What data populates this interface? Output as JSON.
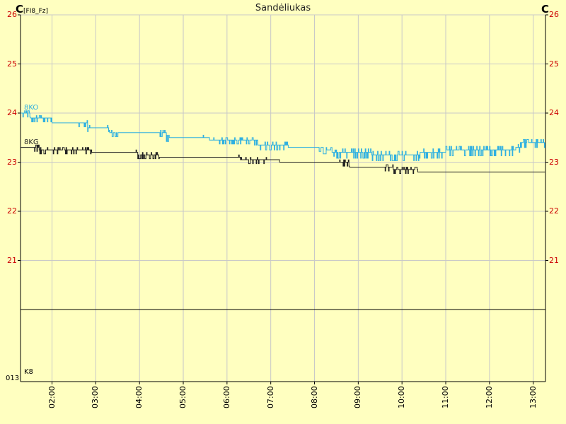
{
  "title": "Sandėliukas",
  "unit_left": "C",
  "unit_left_tag": "[FI8_Fz]",
  "unit_right": "C",
  "lower_panel": {
    "left_label": "013",
    "series_label": "K8"
  },
  "colors": {
    "background": "#ffffc0",
    "grid": "#c8c8c8",
    "axis": "#000000",
    "tick_text": "#cc0000"
  },
  "chart_data": {
    "type": "line",
    "title": "Sandėliukas",
    "ylim": [
      20,
      26
    ],
    "yticks": [
      "21",
      "22",
      "23",
      "24",
      "25",
      "26"
    ],
    "x_start": 1.28,
    "x_end": 13.28,
    "xticks": [
      {
        "h": 2,
        "label": "02:00"
      },
      {
        "h": 3,
        "label": "03:00"
      },
      {
        "h": 4,
        "label": "04:00"
      },
      {
        "h": 5,
        "label": "05:00"
      },
      {
        "h": 6,
        "label": "06:00"
      },
      {
        "h": 7,
        "label": "07:00"
      },
      {
        "h": 8,
        "label": "08:00"
      },
      {
        "h": 9,
        "label": "09:00"
      },
      {
        "h": 10,
        "label": "10:00"
      },
      {
        "h": 11,
        "label": "11:00"
      },
      {
        "h": 12,
        "label": "12:00"
      },
      {
        "h": 13,
        "label": "13:00"
      }
    ],
    "grid": true,
    "series": [
      {
        "name": "8KO",
        "color": "#30b0e0",
        "steps": [
          [
            1.28,
            24.0
          ],
          [
            1.5,
            23.9
          ],
          [
            2.0,
            23.8
          ],
          [
            2.6,
            23.8
          ],
          [
            2.8,
            23.7
          ],
          [
            3.2,
            23.7
          ],
          [
            3.3,
            23.6
          ],
          [
            4.45,
            23.6
          ],
          [
            4.6,
            23.5
          ],
          [
            5.4,
            23.5
          ],
          [
            5.6,
            23.45
          ],
          [
            6.4,
            23.45
          ],
          [
            6.7,
            23.35
          ],
          [
            7.4,
            23.3
          ],
          [
            7.95,
            23.3
          ],
          [
            8.2,
            23.25
          ],
          [
            8.4,
            23.2
          ],
          [
            9.0,
            23.2
          ],
          [
            9.3,
            23.15
          ],
          [
            9.9,
            23.15
          ],
          [
            10.4,
            23.2
          ],
          [
            11.0,
            23.25
          ],
          [
            12.6,
            23.3
          ],
          [
            12.7,
            23.4
          ],
          [
            13.28,
            23.45
          ]
        ],
        "noise": [
          [
            1.3,
            2.0,
            0.08
          ],
          [
            2.6,
            2.9,
            0.08
          ],
          [
            3.25,
            3.5,
            0.08
          ],
          [
            4.45,
            4.7,
            0.08
          ],
          [
            5.4,
            6.6,
            0.08
          ],
          [
            6.6,
            7.4,
            0.1
          ],
          [
            8.1,
            8.5,
            0.08
          ],
          [
            8.5,
            12.6,
            0.12
          ],
          [
            12.6,
            13.28,
            0.1
          ]
        ]
      },
      {
        "name": "8KG",
        "color": "#222222",
        "steps": [
          [
            1.28,
            23.3
          ],
          [
            1.6,
            23.3
          ],
          [
            1.7,
            23.25
          ],
          [
            2.9,
            23.2
          ],
          [
            3.9,
            23.2
          ],
          [
            3.95,
            23.15
          ],
          [
            4.45,
            23.1
          ],
          [
            6.2,
            23.1
          ],
          [
            6.3,
            23.05
          ],
          [
            6.9,
            23.05
          ],
          [
            7.2,
            23.0
          ],
          [
            8.45,
            23.0
          ],
          [
            8.8,
            22.9
          ],
          [
            9.6,
            22.9
          ],
          [
            9.8,
            22.85
          ],
          [
            10.35,
            22.8
          ],
          [
            13.28,
            22.8
          ]
        ],
        "noise": [
          [
            1.6,
            2.9,
            0.08
          ],
          [
            3.9,
            4.45,
            0.08
          ],
          [
            6.25,
            6.9,
            0.08
          ],
          [
            8.45,
            8.8,
            0.08
          ],
          [
            9.6,
            10.35,
            0.08
          ]
        ]
      }
    ]
  }
}
